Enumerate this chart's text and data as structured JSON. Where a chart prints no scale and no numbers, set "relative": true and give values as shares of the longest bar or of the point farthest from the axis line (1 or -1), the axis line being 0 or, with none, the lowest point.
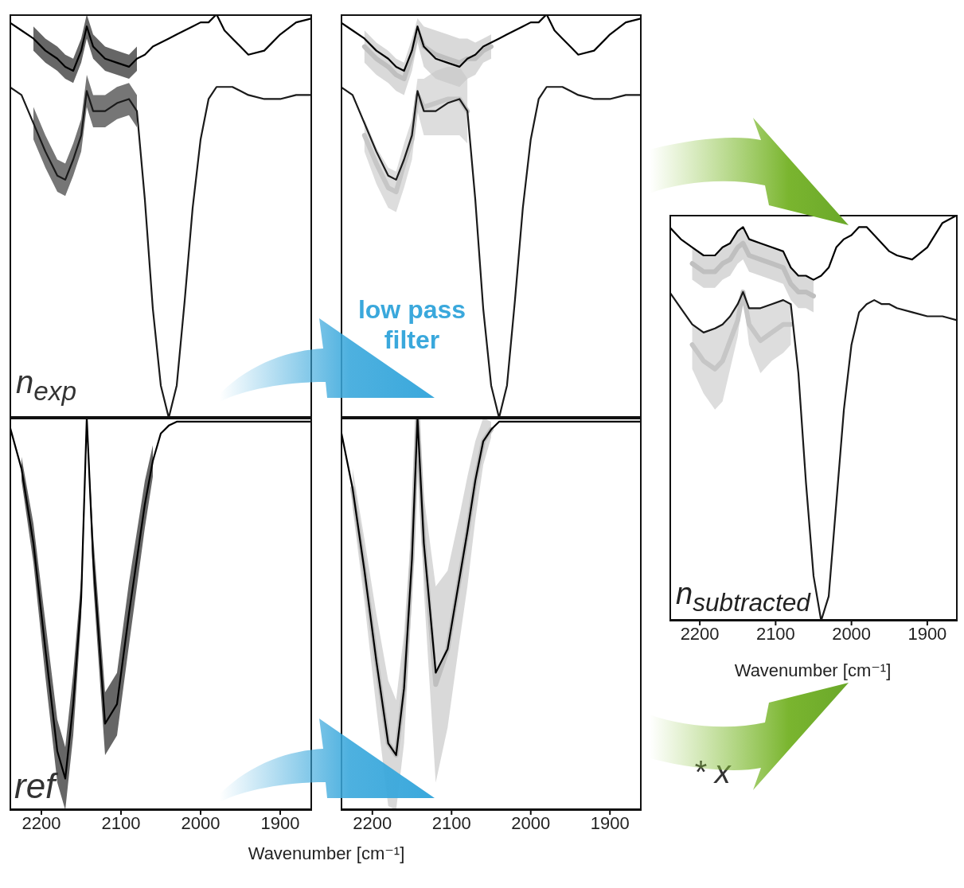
{
  "chart_data": [
    {
      "type": "line",
      "relative": true,
      "xlim": [
        2240,
        1860
      ],
      "xticks": [
        2200,
        2100,
        2000,
        1900
      ],
      "tick_labels": false,
      "annotations": [
        "n$_{exp}$"
      ],
      "x": [
        2240,
        2225,
        2210,
        2195,
        2180,
        2170,
        2160,
        2150,
        2143,
        2135,
        2120,
        2105,
        2090,
        2080,
        2070,
        2060,
        2050,
        2040,
        2030,
        2020,
        2010,
        2000,
        1990,
        1980,
        1970,
        1960,
        1950,
        1940,
        1920,
        1900,
        1880,
        1860
      ],
      "series": [
        {
          "color": "#000000",
          "values": [
            0.98,
            0.96,
            0.94,
            0.91,
            0.89,
            0.87,
            0.86,
            0.91,
            0.97,
            0.92,
            0.89,
            0.88,
            0.87,
            0.89,
            0.9,
            0.92,
            0.93,
            0.94,
            0.95,
            0.96,
            0.97,
            0.98,
            0.98,
            1.0,
            0.96,
            0.94,
            0.92,
            0.9,
            0.91,
            0.95,
            0.98,
            0.99
          ],
          "lower": [
            null,
            null,
            0.91,
            0.88,
            0.86,
            0.84,
            0.83,
            0.88,
            0.94,
            0.89,
            0.86,
            0.85,
            0.84,
            0.86,
            null,
            null,
            null,
            null,
            null,
            null,
            null,
            null,
            null,
            null,
            null,
            null,
            null,
            null,
            null,
            null,
            null,
            null
          ],
          "upper": [
            null,
            null,
            0.97,
            0.94,
            0.92,
            0.9,
            0.89,
            0.94,
            1.0,
            0.95,
            0.92,
            0.91,
            0.9,
            0.92,
            null,
            null,
            null,
            null,
            null,
            null,
            null,
            null,
            null,
            null,
            null,
            null,
            null,
            null,
            null,
            null,
            null,
            null
          ]
        },
        {
          "color": "#1a1a1a",
          "values": [
            0.82,
            0.8,
            0.73,
            0.66,
            0.6,
            0.59,
            0.64,
            0.7,
            0.81,
            0.76,
            0.76,
            0.78,
            0.79,
            0.76,
            0.54,
            0.27,
            0.08,
            0,
            0.08,
            0.29,
            0.52,
            0.69,
            0.79,
            0.82,
            0.82,
            0.82,
            0.81,
            0.8,
            0.79,
            0.79,
            0.8,
            0.8
          ],
          "lower": [
            null,
            null,
            0.69,
            0.62,
            0.56,
            0.55,
            0.6,
            0.66,
            0.77,
            0.72,
            0.72,
            0.74,
            0.75,
            0.72,
            null,
            null,
            null,
            null,
            null,
            null,
            null,
            null,
            null,
            null,
            null,
            null,
            null,
            null,
            null,
            null,
            null,
            null
          ],
          "upper": [
            null,
            null,
            0.77,
            0.7,
            0.64,
            0.63,
            0.68,
            0.74,
            0.85,
            0.8,
            0.8,
            0.82,
            0.83,
            0.8,
            null,
            null,
            null,
            null,
            null,
            null,
            null,
            null,
            null,
            null,
            null,
            null,
            null,
            null,
            null,
            null,
            null,
            null
          ]
        }
      ]
    },
    {
      "type": "line",
      "relative": true,
      "xlim": [
        2240,
        1860
      ],
      "xticks": [
        2200,
        2100,
        2000,
        1900
      ],
      "tick_labels": "x",
      "xlabel": "Wavenumber [cm⁻¹]",
      "annotations": [
        "ref"
      ],
      "x": [
        2240,
        2225,
        2210,
        2195,
        2180,
        2170,
        2160,
        2150,
        2143,
        2135,
        2120,
        2105,
        2090,
        2080,
        2070,
        2060,
        2050,
        2040,
        2030,
        2020,
        2010,
        2000,
        1990,
        1980,
        1970,
        1960,
        1950,
        1940,
        1920,
        1900,
        1880,
        1860
      ],
      "series": [
        {
          "color": "#000000",
          "values": [
            0.98,
            0.87,
            0.68,
            0.41,
            0.15,
            0.08,
            0.27,
            0.54,
            1.0,
            0.64,
            0.22,
            0.27,
            0.5,
            0.64,
            0.78,
            0.89,
            0.96,
            0.98,
            0.99,
            0.99,
            0.99,
            0.99,
            0.99,
            0.99,
            0.99,
            0.99,
            0.99,
            0.99,
            0.99,
            0.99,
            0.99,
            0.99
          ],
          "lower": [
            null,
            0.84,
            0.63,
            0.34,
            0.07,
            0,
            0.19,
            0.49,
            1.0,
            0.58,
            0.14,
            0.19,
            0.42,
            0.57,
            0.72,
            0.85,
            null,
            null,
            null,
            null,
            null,
            null,
            null,
            null,
            null,
            null,
            null,
            null,
            null,
            null,
            null,
            null
          ],
          "upper": [
            null,
            0.9,
            0.73,
            0.48,
            0.23,
            0.16,
            0.35,
            0.59,
            1.0,
            0.7,
            0.3,
            0.35,
            0.58,
            0.71,
            0.84,
            0.93,
            null,
            null,
            null,
            null,
            null,
            null,
            null,
            null,
            null,
            null,
            null,
            null,
            null,
            null,
            null,
            null
          ]
        }
      ]
    },
    {
      "type": "line",
      "relative": true,
      "xlim": [
        2240,
        1860
      ],
      "xticks": [
        2200,
        2100,
        2000,
        1900
      ],
      "tick_labels": false,
      "annotations": [
        "low pass filter"
      ],
      "x": [
        2240,
        2225,
        2210,
        2195,
        2180,
        2170,
        2160,
        2150,
        2143,
        2135,
        2120,
        2105,
        2090,
        2080,
        2070,
        2060,
        2050,
        2040,
        2030,
        2020,
        2010,
        2000,
        1990,
        1980,
        1970,
        1960,
        1950,
        1940,
        1920,
        1900,
        1880,
        1860
      ],
      "series": [
        {
          "color": "#bfbfbf",
          "values": [
            null,
            null,
            0.92,
            0.89,
            0.87,
            0.85,
            0.84,
            0.9,
            0.96,
            0.92,
            0.9,
            0.89,
            0.88,
            0.89,
            0.89,
            0.91,
            0.92,
            null,
            null,
            null,
            null,
            null,
            null,
            null,
            null,
            null,
            null,
            null,
            null,
            null,
            null,
            null
          ],
          "lower": [
            null,
            null,
            0.88,
            0.85,
            0.83,
            0.81,
            0.8,
            0.86,
            0.93,
            0.87,
            0.84,
            0.83,
            0.82,
            0.84,
            0.85,
            0.88,
            0.89,
            null,
            null,
            null,
            null,
            null,
            null,
            null,
            null,
            null,
            null,
            null,
            null,
            null,
            null,
            null
          ],
          "upper": [
            null,
            null,
            0.96,
            0.93,
            0.91,
            0.89,
            0.88,
            0.94,
            0.99,
            0.97,
            0.96,
            0.95,
            0.94,
            0.94,
            0.93,
            0.94,
            0.95,
            null,
            null,
            null,
            null,
            null,
            null,
            null,
            null,
            null,
            null,
            null,
            null,
            null,
            null,
            null
          ]
        },
        {
          "color": "#c6c6c6",
          "values": [
            null,
            null,
            0.7,
            0.63,
            0.57,
            0.56,
            0.63,
            0.69,
            0.8,
            0.77,
            0.78,
            0.79,
            0.79,
            0.76,
            null,
            null,
            null,
            null,
            null,
            null,
            null,
            null,
            null,
            null,
            null,
            null,
            null,
            null,
            null,
            null,
            null,
            null
          ],
          "lower": [
            null,
            null,
            0.66,
            0.58,
            0.52,
            0.51,
            0.57,
            0.64,
            0.76,
            0.7,
            0.7,
            0.7,
            0.7,
            0.68,
            null,
            null,
            null,
            null,
            null,
            null,
            null,
            null,
            null,
            null,
            null,
            null,
            null,
            null,
            null,
            null,
            null,
            null
          ],
          "upper": [
            null,
            null,
            0.74,
            0.67,
            0.62,
            0.61,
            0.68,
            0.74,
            0.84,
            0.84,
            0.86,
            0.87,
            0.87,
            0.84,
            null,
            null,
            null,
            null,
            null,
            null,
            null,
            null,
            null,
            null,
            null,
            null,
            null,
            null,
            null,
            null,
            null,
            null
          ]
        },
        {
          "color": "#000000",
          "values": [
            0.98,
            0.96,
            0.94,
            0.91,
            0.89,
            0.87,
            0.86,
            0.91,
            0.97,
            0.92,
            0.89,
            0.88,
            0.87,
            0.89,
            0.9,
            0.92,
            0.93,
            0.94,
            0.95,
            0.96,
            0.97,
            0.98,
            0.98,
            1.0,
            0.96,
            0.94,
            0.92,
            0.9,
            0.91,
            0.95,
            0.98,
            0.99
          ]
        },
        {
          "color": "#1a1a1a",
          "values": [
            0.82,
            0.8,
            0.73,
            0.66,
            0.6,
            0.59,
            0.64,
            0.7,
            0.81,
            0.76,
            0.76,
            0.78,
            0.79,
            0.76,
            0.54,
            0.27,
            0.08,
            0,
            0.08,
            0.29,
            0.52,
            0.69,
            0.79,
            0.82,
            0.82,
            0.82,
            0.81,
            0.8,
            0.79,
            0.79,
            0.8,
            0.8
          ]
        }
      ]
    },
    {
      "type": "line",
      "relative": true,
      "xlim": [
        2240,
        1860
      ],
      "xticks": [
        2200,
        2100,
        2000,
        1900
      ],
      "tick_labels": "x",
      "x": [
        2240,
        2225,
        2210,
        2195,
        2180,
        2170,
        2160,
        2150,
        2143,
        2135,
        2120,
        2105,
        2090,
        2080,
        2070,
        2060,
        2050,
        2040,
        2030,
        2020,
        2010,
        2000,
        1990,
        1980,
        1970,
        1960,
        1950,
        1940,
        1920,
        1900,
        1880,
        1860
      ],
      "series": [
        {
          "color": "#bfbfbf",
          "values": [
            null,
            0.82,
            0.61,
            0.38,
            0.17,
            0.14,
            0.31,
            0.64,
            1.0,
            0.68,
            0.32,
            0.41,
            0.59,
            0.71,
            0.84,
            0.94,
            0.97,
            null,
            null,
            null,
            null,
            null,
            null,
            null,
            null,
            null,
            null,
            null,
            null,
            null,
            null,
            null
          ],
          "lower": [
            null,
            0.77,
            0.53,
            0.26,
            0.01,
            0,
            0.17,
            0.54,
            1.0,
            0.56,
            0.07,
            0.21,
            0.43,
            0.57,
            0.74,
            0.88,
            0.95,
            null,
            null,
            null,
            null,
            null,
            null,
            null,
            null,
            null,
            null,
            null,
            null,
            null,
            null,
            null
          ],
          "upper": [
            null,
            0.87,
            0.69,
            0.5,
            0.33,
            0.28,
            0.45,
            0.74,
            1.0,
            0.8,
            0.57,
            0.61,
            0.75,
            0.85,
            0.94,
            1.0,
            0.99,
            null,
            null,
            null,
            null,
            null,
            null,
            null,
            null,
            null,
            null,
            null,
            null,
            null,
            null,
            null
          ]
        },
        {
          "color": "#000000",
          "values": [
            0.97,
            0.82,
            0.61,
            0.38,
            0.17,
            0.14,
            0.31,
            0.64,
            1.0,
            0.68,
            0.35,
            0.41,
            0.59,
            0.71,
            0.84,
            0.94,
            0.97,
            0.99,
            0.99,
            0.99,
            0.99,
            0.99,
            0.99,
            0.99,
            0.99,
            0.99,
            0.99,
            0.99,
            0.99,
            0.99,
            0.99,
            0.99
          ]
        }
      ]
    },
    {
      "type": "line",
      "relative": true,
      "xlim": [
        2240,
        1860
      ],
      "xticks": [
        2200,
        2100,
        2000,
        1900
      ],
      "tick_labels": "x",
      "xlabel": "Wavenumber [cm⁻¹]",
      "annotations": [
        "n$_{subtracted}$",
        "* x"
      ],
      "x": [
        2240,
        2225,
        2210,
        2195,
        2180,
        2170,
        2160,
        2150,
        2143,
        2135,
        2120,
        2105,
        2090,
        2080,
        2070,
        2060,
        2050,
        2040,
        2030,
        2020,
        2010,
        2000,
        1990,
        1980,
        1970,
        1960,
        1950,
        1940,
        1920,
        1900,
        1880,
        1860
      ],
      "series": [
        {
          "color": "#bfbfbf",
          "values": [
            null,
            null,
            0.88,
            0.86,
            0.86,
            0.88,
            0.89,
            0.92,
            0.93,
            0.9,
            0.89,
            0.88,
            0.87,
            0.83,
            0.81,
            0.81,
            0.8,
            null,
            null,
            null,
            null,
            null,
            null,
            null,
            null,
            null,
            null,
            null,
            null,
            null,
            null,
            null
          ],
          "lower": [
            null,
            null,
            0.84,
            0.82,
            0.82,
            0.84,
            0.85,
            0.88,
            0.89,
            0.86,
            0.85,
            0.84,
            0.83,
            0.79,
            0.77,
            0.77,
            0.76,
            null,
            null,
            null,
            null,
            null,
            null,
            null,
            null,
            null,
            null,
            null,
            null,
            null,
            null,
            null
          ],
          "upper": [
            null,
            null,
            0.92,
            0.9,
            0.9,
            0.92,
            0.93,
            0.96,
            0.97,
            0.94,
            0.93,
            0.92,
            0.91,
            0.87,
            0.85,
            0.85,
            0.84,
            null,
            null,
            null,
            null,
            null,
            null,
            null,
            null,
            null,
            null,
            null,
            null,
            null,
            null,
            null
          ]
        },
        {
          "color": "#c6c6c6",
          "values": [
            null,
            null,
            0.68,
            0.64,
            0.62,
            0.64,
            0.69,
            0.74,
            0.81,
            0.73,
            0.69,
            0.71,
            0.73,
            0.73,
            null,
            null,
            null,
            null,
            null,
            null,
            null,
            null,
            null,
            null,
            null,
            null,
            null,
            null,
            null,
            null,
            null,
            null
          ],
          "lower": [
            null,
            null,
            0.62,
            0.56,
            0.52,
            0.54,
            0.62,
            0.7,
            0.8,
            0.68,
            0.61,
            0.64,
            0.66,
            0.68,
            null,
            null,
            null,
            null,
            null,
            null,
            null,
            null,
            null,
            null,
            null,
            null,
            null,
            null,
            null,
            null,
            null,
            null
          ],
          "upper": [
            null,
            null,
            0.73,
            0.71,
            0.72,
            0.73,
            0.75,
            0.78,
            0.81,
            0.77,
            0.77,
            0.78,
            0.79,
            0.78,
            null,
            null,
            null,
            null,
            null,
            null,
            null,
            null,
            null,
            null,
            null,
            null,
            null,
            null,
            null,
            null,
            null,
            null
          ]
        },
        {
          "color": "#000000",
          "values": [
            0.97,
            0.94,
            0.92,
            0.9,
            0.9,
            0.92,
            0.93,
            0.96,
            0.97,
            0.94,
            0.93,
            0.92,
            0.91,
            0.87,
            0.85,
            0.85,
            0.84,
            0.85,
            0.87,
            0.92,
            0.94,
            0.95,
            0.97,
            0.97,
            0.95,
            0.93,
            0.91,
            0.9,
            0.89,
            0.92,
            0.98,
            1.0
          ]
        },
        {
          "color": "#1a1a1a",
          "values": [
            0.81,
            0.77,
            0.73,
            0.71,
            0.72,
            0.73,
            0.75,
            0.78,
            0.81,
            0.77,
            0.77,
            0.78,
            0.79,
            0.78,
            0.61,
            0.34,
            0.11,
            0,
            0.06,
            0.29,
            0.52,
            0.68,
            0.76,
            0.78,
            0.79,
            0.78,
            0.78,
            0.77,
            0.76,
            0.75,
            0.75,
            0.74
          ]
        }
      ]
    }
  ]
}
